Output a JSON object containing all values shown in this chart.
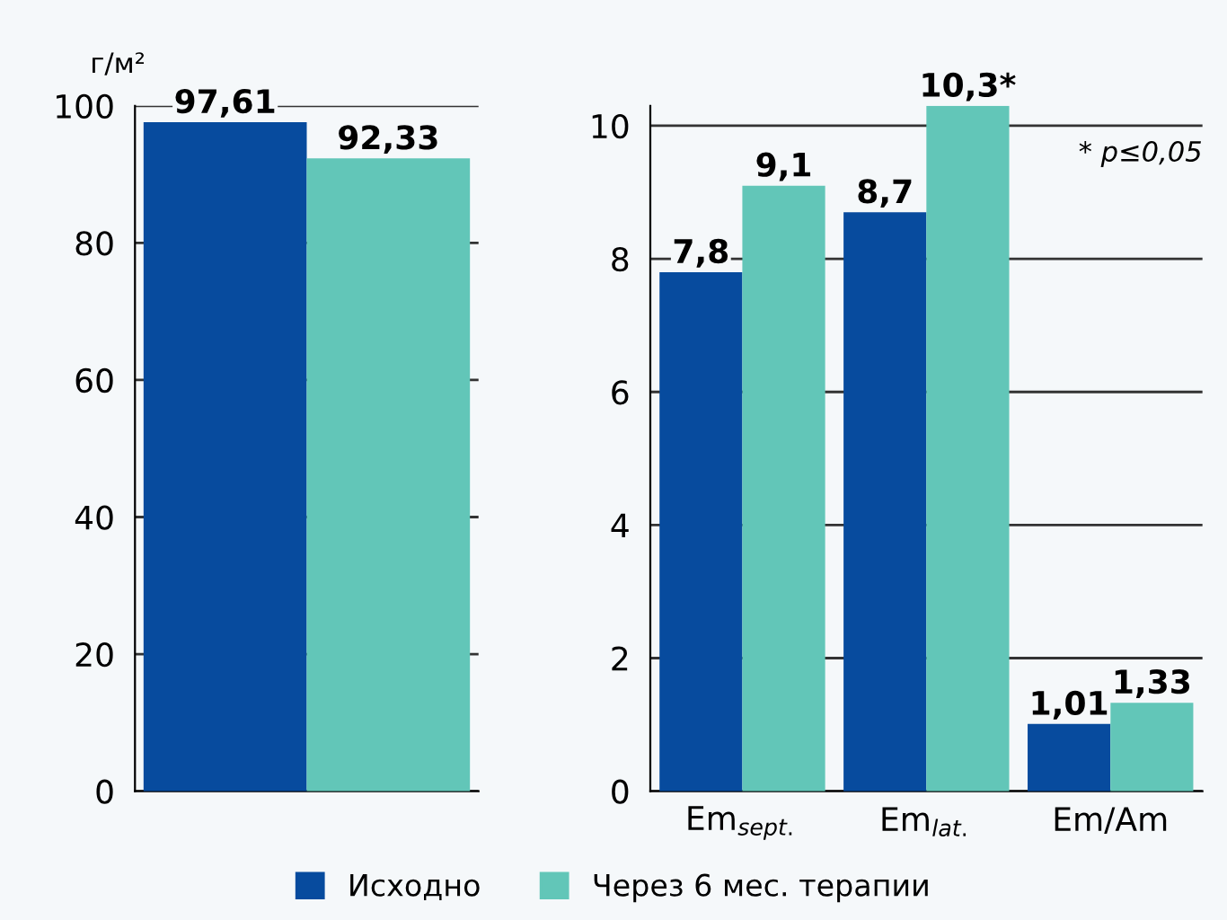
{
  "chart_data": [
    {
      "type": "bar",
      "ylabel": "г/м²",
      "categories": [
        null
      ],
      "ylim": [
        0,
        100
      ],
      "yticks": [
        0,
        20,
        40,
        60,
        80,
        100
      ],
      "grid": "y",
      "legend": false,
      "series": [
        {
          "color": "#074b9e",
          "values": [
            97.61
          ],
          "value_labels": [
            "97,61"
          ]
        },
        {
          "color": "#62c6b8",
          "values": [
            92.33
          ],
          "value_labels": [
            "92,33"
          ]
        }
      ]
    },
    {
      "type": "bar",
      "categories": [
        "Em$_{sept.}$",
        "Em$_{lat.}$",
        "Em/Am"
      ],
      "ylim": [
        0,
        10.3
      ],
      "yticks": [
        0,
        2,
        4,
        6,
        8,
        10
      ],
      "grid": "y",
      "legend": "bottom",
      "annotations": [
        "* p≤0,05"
      ],
      "series": [
        {
          "name": "Исходно",
          "color": "#074b9e",
          "values": [
            7.8,
            8.7,
            1.01
          ],
          "value_labels": [
            "7,8",
            "8,7",
            "1,01"
          ]
        },
        {
          "name": "Через 6 мес. терапии",
          "color": "#62c6b8",
          "values": [
            9.1,
            10.3,
            1.33
          ],
          "value_labels": [
            "9,1",
            "10,3*",
            "1,33"
          ]
        }
      ]
    }
  ]
}
